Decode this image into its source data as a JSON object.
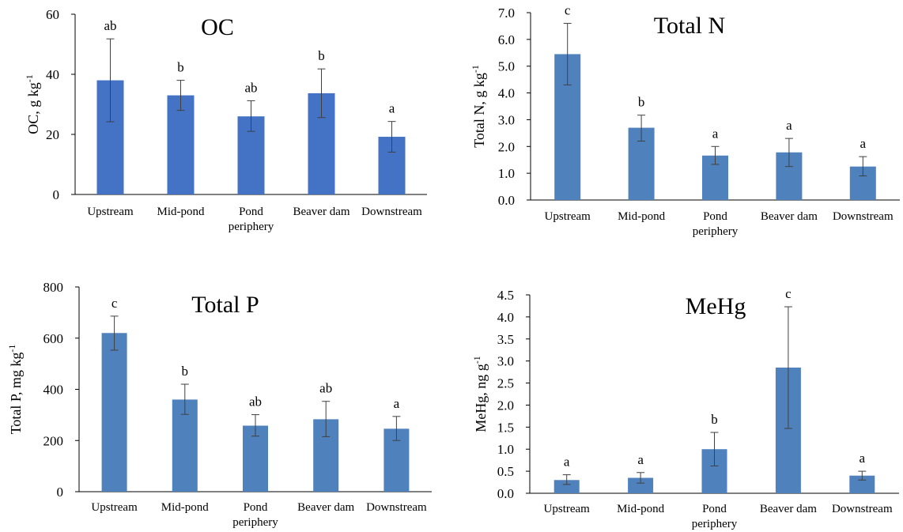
{
  "chart_data": [
    {
      "type": "bar",
      "title": "OC",
      "ylabel": "OC, g kg",
      "ylabel_sup": "-1",
      "categories": [
        "Upstream",
        "Mid-pond",
        "Pond periphery",
        "Beaver dam",
        "Downstream"
      ],
      "category_lines": [
        [
          "Upstream"
        ],
        [
          "Mid-pond"
        ],
        [
          "Pond",
          "periphery"
        ],
        [
          "Beaver dam"
        ],
        [
          "Downstream"
        ]
      ],
      "values": [
        38,
        33,
        26,
        33.7,
        19.2
      ],
      "error_low": [
        24.2,
        28,
        21,
        25.6,
        14.1
      ],
      "error_high": [
        51.8,
        38,
        31.2,
        41.8,
        24.3
      ],
      "significance": [
        "ab",
        "b",
        "ab",
        "b",
        "a"
      ],
      "ylim": [
        0,
        60
      ],
      "yticks": [
        "0",
        "20",
        "40",
        "60"
      ],
      "bar_color": "#4472C4"
    },
    {
      "type": "bar",
      "title": "Total N",
      "ylabel": "Total N, g kg",
      "ylabel_sup": "-1",
      "categories": [
        "Upstream",
        "Mid-pond",
        "Pond periphery",
        "Beaver dam",
        "Downstream"
      ],
      "category_lines": [
        [
          "Upstream"
        ],
        [
          "Mid-pond"
        ],
        [
          "Pond",
          "periphery"
        ],
        [
          "Beaver dam"
        ],
        [
          "Downstream"
        ]
      ],
      "values": [
        5.45,
        2.7,
        1.66,
        1.78,
        1.25
      ],
      "error_low": [
        4.3,
        2.2,
        1.33,
        1.25,
        0.9
      ],
      "error_high": [
        6.6,
        3.17,
        2.0,
        2.3,
        1.62
      ],
      "significance": [
        "c",
        "b",
        "a",
        "a",
        "a"
      ],
      "ylim": [
        0,
        7
      ],
      "yticks": [
        "0.0",
        "1.0",
        "2.0",
        "3.0",
        "4.0",
        "5.0",
        "6.0",
        "7.0"
      ],
      "bar_color": "#4F81BD"
    },
    {
      "type": "bar",
      "title": "Total P",
      "ylabel": "Total P, mg kg",
      "ylabel_sup": "-1",
      "categories": [
        "Upstream",
        "Mid-pond",
        "Pond periphery",
        "Beaver dam",
        "Downstream"
      ],
      "category_lines": [
        [
          "Upstream"
        ],
        [
          "Mid-pond"
        ],
        [
          "Pond",
          "periphery"
        ],
        [
          "Beaver dam"
        ],
        [
          "Downstream"
        ]
      ],
      "values": [
        620,
        360,
        258,
        283,
        246
      ],
      "error_low": [
        553,
        302,
        217,
        215,
        200
      ],
      "error_high": [
        686,
        420,
        301,
        353,
        294
      ],
      "significance": [
        "c",
        "b",
        "ab",
        "ab",
        "a"
      ],
      "ylim": [
        0,
        800
      ],
      "yticks": [
        "0",
        "200",
        "400",
        "600",
        "800"
      ],
      "bar_color": "#4F81BD"
    },
    {
      "type": "bar",
      "title": "MeHg",
      "ylabel": "MeHg, ng g",
      "ylabel_sup": "-1",
      "categories": [
        "Upstream",
        "Mid-pond",
        "Pond periphery",
        "Beaver dam",
        "Downstream"
      ],
      "category_lines": [
        [
          "Upstream"
        ],
        [
          "Mid-pond"
        ],
        [
          "Pond",
          "periphery"
        ],
        [
          "Beaver dam"
        ],
        [
          "Downstream"
        ]
      ],
      "values": [
        0.3,
        0.35,
        1.0,
        2.85,
        0.4
      ],
      "error_low": [
        0.2,
        0.23,
        0.62,
        1.47,
        0.3
      ],
      "error_high": [
        0.42,
        0.47,
        1.38,
        4.23,
        0.5
      ],
      "significance": [
        "a",
        "a",
        "b",
        "c",
        "a"
      ],
      "ylim": [
        0,
        4.5
      ],
      "yticks": [
        "0.0",
        "0.5",
        "1.0",
        "1.5",
        "2.0",
        "2.5",
        "3.0",
        "3.5",
        "4.0",
        "4.5"
      ],
      "bar_color": "#4F81BD"
    }
  ]
}
